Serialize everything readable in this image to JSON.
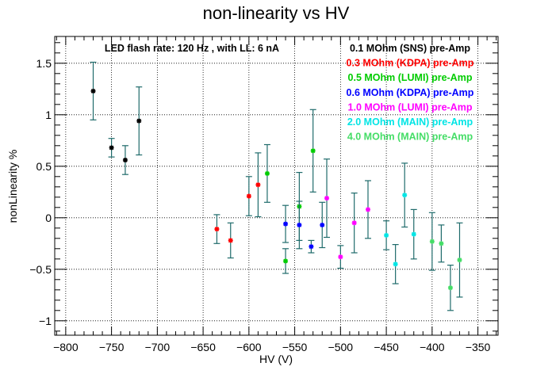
{
  "chart_data": {
    "type": "scatter",
    "title": "non-linearity vs HV",
    "xlabel": "HV (V)",
    "ylabel": "nonLinearity %",
    "xlim": [
      -812,
      -328
    ],
    "ylim": [
      -1.14,
      1.76
    ],
    "x_ticks": [
      -800,
      -750,
      -700,
      -650,
      -600,
      -550,
      -500,
      -450,
      -400,
      -350
    ],
    "x_tick_labels": [
      "−800",
      "−750",
      "−700",
      "−650",
      "−600",
      "−550",
      "−500",
      "−450",
      "−400",
      "−350"
    ],
    "y_ticks": [
      -1,
      -0.5,
      0,
      0.5,
      1,
      1.5
    ],
    "y_tick_labels": [
      "−1",
      "−0.5",
      "0",
      "0.5",
      "1",
      "1.5"
    ],
    "grid": true,
    "error_bar_color": "#1f6b6b",
    "annotation": "LED flash rate: 120 Hz , with LL: 6 nA",
    "legend_position": "top-right",
    "series": [
      {
        "name": "0.1 MOhm (SNS) pre-Amp",
        "color": "#000000",
        "points": [
          {
            "x": -770,
            "y": 1.23,
            "err": 0.28
          },
          {
            "x": -750,
            "y": 0.68,
            "err": 0.09
          },
          {
            "x": -735,
            "y": 0.56,
            "err": 0.14
          },
          {
            "x": -720,
            "y": 0.94,
            "err": 0.33
          }
        ]
      },
      {
        "name": "0.3 MOhm (KDPA) pre-Amp",
        "color": "#ff0000",
        "points": [
          {
            "x": -635,
            "y": -0.11,
            "err": 0.14
          },
          {
            "x": -620,
            "y": -0.22,
            "err": 0.17
          },
          {
            "x": -600,
            "y": 0.21,
            "err": 0.19
          },
          {
            "x": -590,
            "y": 0.32,
            "err": 0.31
          }
        ]
      },
      {
        "name": "0.5 MOhm (LUMI) pre-Amp",
        "color": "#00cc00",
        "points": [
          {
            "x": -580,
            "y": 0.43,
            "err": 0.28
          },
          {
            "x": -560,
            "y": -0.42,
            "err": 0.12
          },
          {
            "x": -545,
            "y": 0.11,
            "err": 0.33
          },
          {
            "x": -530,
            "y": 0.65,
            "err": 0.4
          }
        ]
      },
      {
        "name": "0.6 MOhm (KDPA) pre-Amp",
        "color": "#0000ff",
        "points": [
          {
            "x": -560,
            "y": -0.06,
            "err": 0.18
          },
          {
            "x": -545,
            "y": -0.07,
            "err": 0.23
          },
          {
            "x": -532,
            "y": -0.28,
            "err": 0.06
          },
          {
            "x": -520,
            "y": -0.07,
            "err": 0.22
          }
        ]
      },
      {
        "name": "1.0 MOhm (LUMI) pre-Amp",
        "color": "#ff00ff",
        "points": [
          {
            "x": -515,
            "y": 0.19,
            "err": 0.38
          },
          {
            "x": -500,
            "y": -0.38,
            "err": 0.11
          },
          {
            "x": -485,
            "y": -0.05,
            "err": 0.29
          },
          {
            "x": -470,
            "y": 0.08,
            "err": 0.28
          }
        ]
      },
      {
        "name": "2.0 MOhm (MAIN) pre-Amp",
        "color": "#00e5e5",
        "points": [
          {
            "x": -450,
            "y": -0.17,
            "err": 0.14
          },
          {
            "x": -440,
            "y": -0.45,
            "err": 0.19
          },
          {
            "x": -430,
            "y": 0.22,
            "err": 0.31
          },
          {
            "x": -420,
            "y": -0.16,
            "err": 0.24
          }
        ]
      },
      {
        "name": "4.0 MOhm (MAIN) pre-Amp",
        "color": "#44dd66",
        "points": [
          {
            "x": -400,
            "y": -0.23,
            "err": 0.28
          },
          {
            "x": -390,
            "y": -0.25,
            "err": 0.18
          },
          {
            "x": -380,
            "y": -0.68,
            "err": 0.22
          },
          {
            "x": -370,
            "y": -0.41,
            "err": 0.36
          }
        ]
      }
    ]
  }
}
